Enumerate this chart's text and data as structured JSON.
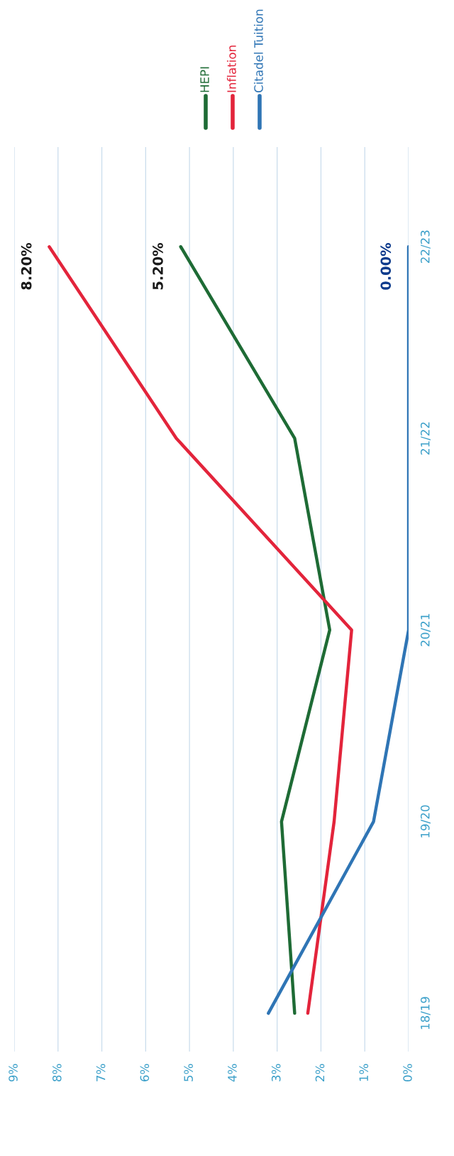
{
  "chart_data": {
    "type": "line",
    "orientation": "horizontal",
    "categories": [
      "22/23",
      "21/22",
      "20/21",
      "19/20",
      "18/19"
    ],
    "series": [
      {
        "name": "HEPI",
        "color": "#1e6b35",
        "values": [
          5.2,
          2.6,
          1.8,
          2.9,
          2.6
        ],
        "value_labels": [
          "5.20%",
          null,
          null,
          null,
          null
        ]
      },
      {
        "name": "Inflation",
        "color": "#e3243b",
        "values": [
          8.2,
          5.3,
          1.3,
          1.7,
          2.3
        ],
        "value_labels": [
          "8.20%",
          null,
          null,
          null,
          null
        ]
      },
      {
        "name": "Citadel Tuition",
        "color": "#2f75b5",
        "values": [
          0.0,
          0.0,
          0.0,
          0.8,
          3.2
        ],
        "value_labels": [
          "0.00%",
          null,
          null,
          null,
          null
        ]
      }
    ],
    "xlim": [
      9,
      0
    ],
    "xticks": [
      {
        "value": 9,
        "label": "9%"
      },
      {
        "value": 8,
        "label": "8%"
      },
      {
        "value": 7,
        "label": "7%"
      },
      {
        "value": 6,
        "label": "6%"
      },
      {
        "value": 5,
        "label": "5%"
      },
      {
        "value": 4,
        "label": "4%"
      },
      {
        "value": 3,
        "label": "3%"
      },
      {
        "value": 2,
        "label": "2%"
      },
      {
        "value": 1,
        "label": "1%"
      },
      {
        "value": 0,
        "label": "0%"
      }
    ],
    "grid": "x",
    "legend": "top",
    "marker": "none",
    "line_style": "solid"
  }
}
